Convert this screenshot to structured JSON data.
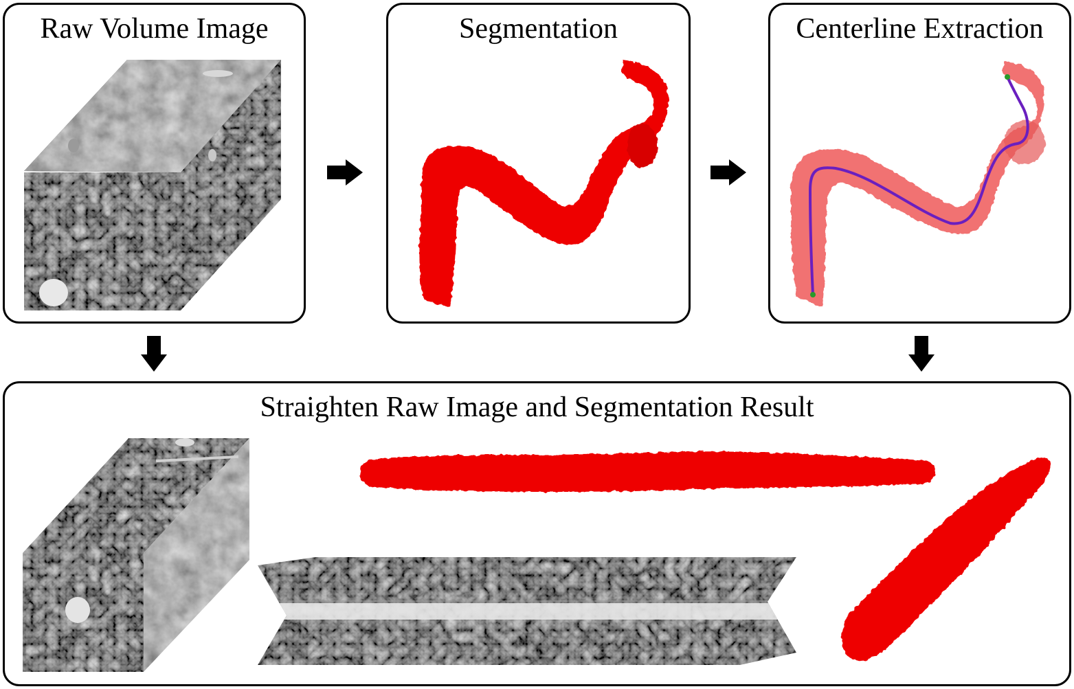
{
  "panels": {
    "raw_volume": {
      "title": "Raw Volume Image"
    },
    "segmentation": {
      "title": "Segmentation"
    },
    "centerline": {
      "title": "Centerline Extraction"
    },
    "straighten": {
      "title": "Straighten Raw Image and Segmentation Result"
    }
  },
  "colors": {
    "vessel_red": "#ee0000",
    "vessel_translucent": "#ef5a5a",
    "centerline_purple": "#6a1fbf",
    "endpoint_green": "#2a9a2a",
    "border": "#000000"
  },
  "icons": {
    "flow_arrow": "arrow-right-icon",
    "down_arrow": "arrow-down-icon"
  }
}
